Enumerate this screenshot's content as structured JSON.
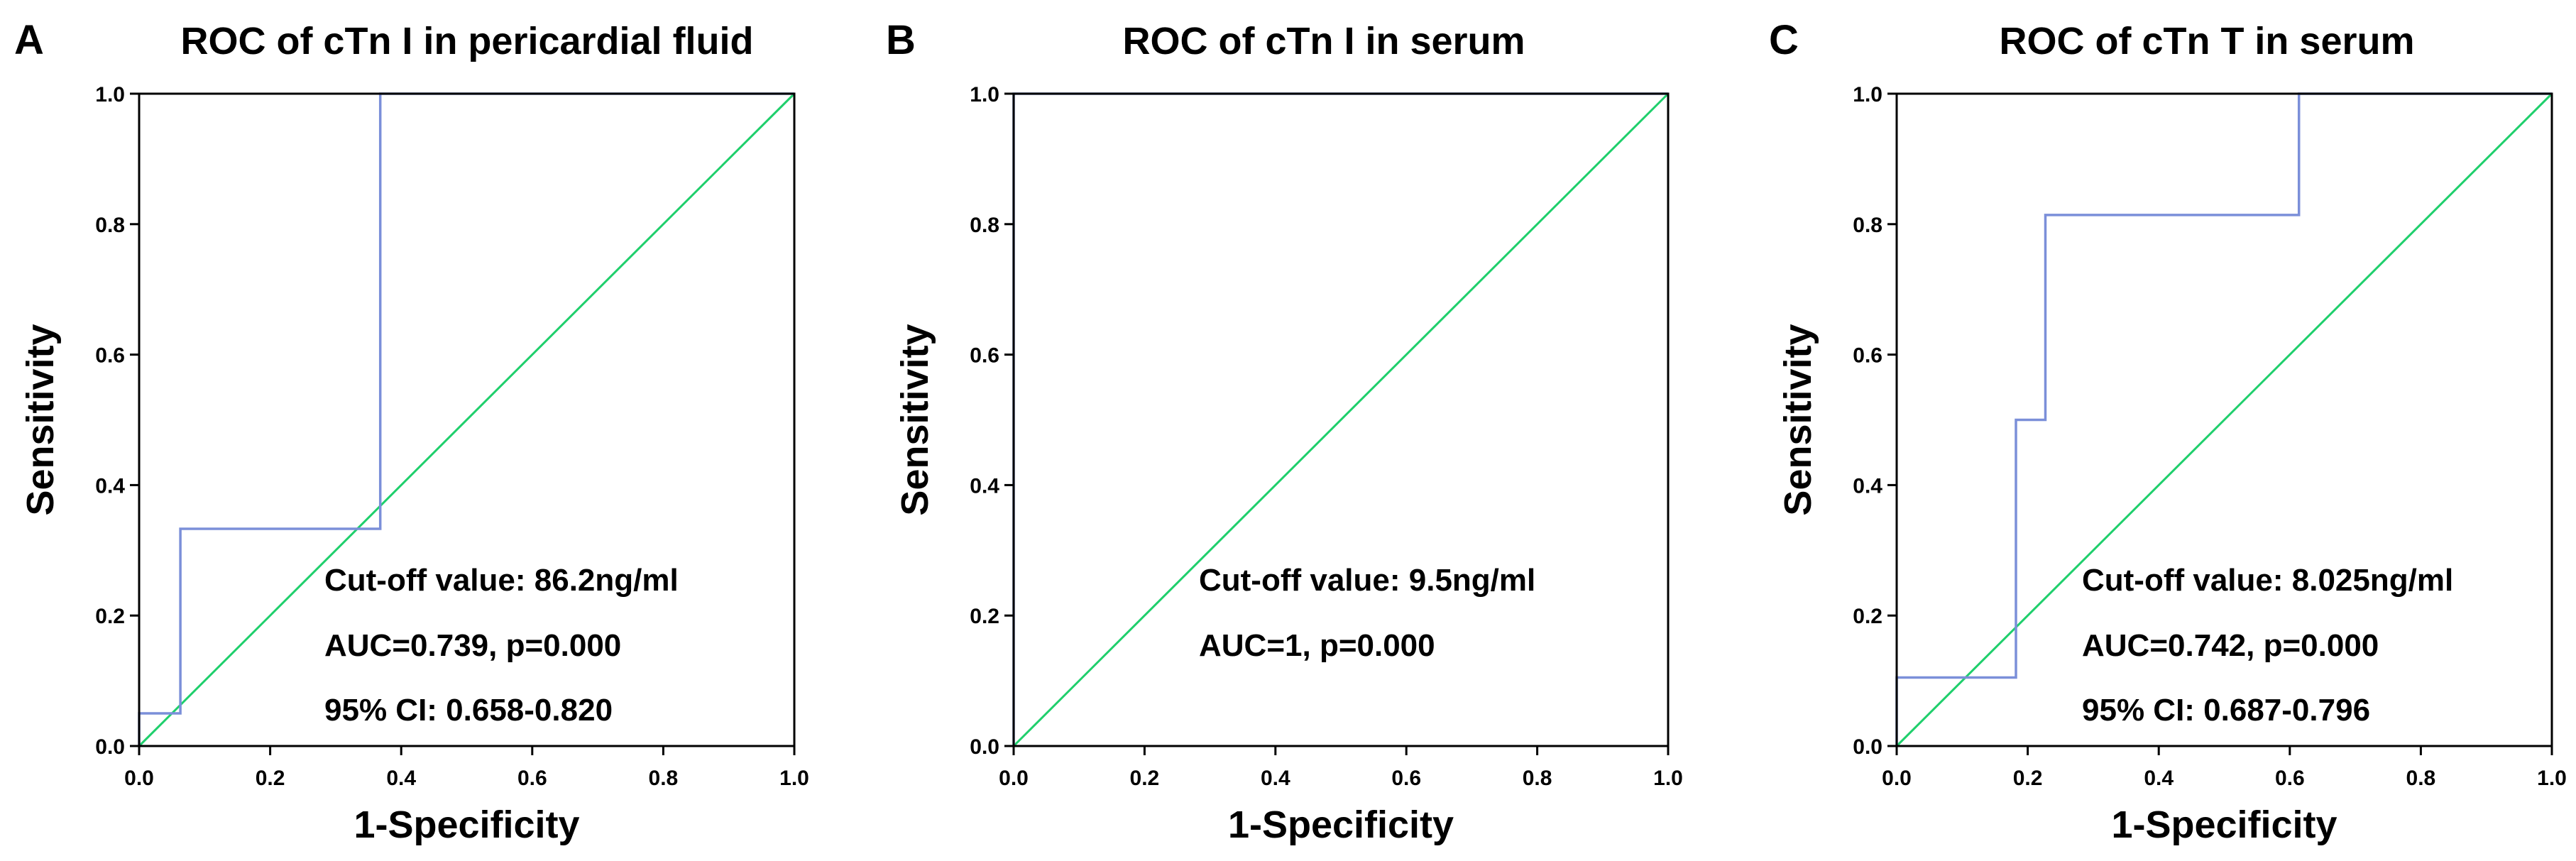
{
  "figure": {
    "panels": [
      {
        "letter": "A",
        "chart_data": {
          "type": "line",
          "title": "ROC of cTn I in pericardial fluid",
          "xlabel": "1-Specificity",
          "ylabel": "Sensitivity",
          "xlim": [
            0.0,
            1.0
          ],
          "ylim": [
            0.0,
            1.0
          ],
          "xticks": [
            "0.0",
            "0.2",
            "0.4",
            "0.6",
            "0.8",
            "1.0"
          ],
          "yticks": [
            "0.0",
            "0.2",
            "0.4",
            "0.6",
            "0.8",
            "1.0"
          ],
          "grid": false,
          "series": [
            {
              "role": "roc",
              "color": "#7b8fd9",
              "x": [
                0.0,
                0.0,
                0.063,
                0.063,
                0.368,
                0.368,
                1.0
              ],
              "y": [
                0.0,
                0.05,
                0.05,
                0.333,
                0.333,
                1.0,
                1.0
              ]
            },
            {
              "role": "reference",
              "color": "#1fcf6c",
              "x": [
                0.0,
                1.0
              ],
              "y": [
                0.0,
                1.0
              ]
            }
          ],
          "annotations": [
            "Cut-off value: 86.2ng/ml",
            "AUC=0.739, p=0.000",
            "95% CI: 0.658-0.820"
          ]
        }
      },
      {
        "letter": "B",
        "chart_data": {
          "type": "line",
          "title": "ROC of cTn I in serum",
          "xlabel": "1-Specificity",
          "ylabel": "Sensitivity",
          "xlim": [
            0.0,
            1.0
          ],
          "ylim": [
            0.0,
            1.0
          ],
          "xticks": [
            "0.0",
            "0.2",
            "0.4",
            "0.6",
            "0.8",
            "1.0"
          ],
          "yticks": [
            "0.0",
            "0.2",
            "0.4",
            "0.6",
            "0.8",
            "1.0"
          ],
          "grid": false,
          "series": [
            {
              "role": "roc",
              "color": "#7b8fd9",
              "x": [
                0.0,
                0.0,
                1.0
              ],
              "y": [
                0.0,
                1.0,
                1.0
              ]
            },
            {
              "role": "reference",
              "color": "#1fcf6c",
              "x": [
                0.0,
                1.0
              ],
              "y": [
                0.0,
                1.0
              ]
            }
          ],
          "annotations": [
            "Cut-off value: 9.5ng/ml",
            "AUC=1, p=0.000"
          ]
        }
      },
      {
        "letter": "C",
        "chart_data": {
          "type": "line",
          "title": "ROC of cTn T in serum",
          "xlabel": "1-Specificity",
          "ylabel": "Sensitivity",
          "xlim": [
            0.0,
            1.0
          ],
          "ylim": [
            0.0,
            1.0
          ],
          "xticks": [
            "0.0",
            "0.2",
            "0.4",
            "0.6",
            "0.8",
            "1.0"
          ],
          "yticks": [
            "0.0",
            "0.2",
            "0.4",
            "0.6",
            "0.8",
            "1.0"
          ],
          "grid": false,
          "series": [
            {
              "role": "roc",
              "color": "#7b8fd9",
              "x": [
                0.0,
                0.0,
                0.182,
                0.182,
                0.227,
                0.227,
                0.614,
                0.614,
                1.0
              ],
              "y": [
                0.0,
                0.105,
                0.105,
                0.5,
                0.5,
                0.814,
                0.814,
                1.0,
                1.0
              ]
            },
            {
              "role": "reference",
              "color": "#1fcf6c",
              "x": [
                0.0,
                1.0
              ],
              "y": [
                0.0,
                1.0
              ]
            }
          ],
          "annotations": [
            "Cut-off value: 8.025ng/ml",
            "AUC=0.742, p=0.000",
            "95% CI: 0.687-0.796"
          ]
        }
      }
    ]
  }
}
